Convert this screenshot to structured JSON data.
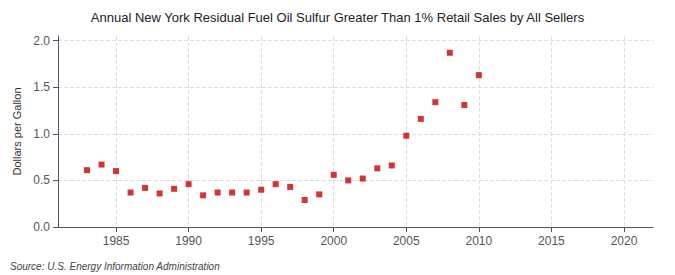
{
  "chart_data": {
    "type": "scatter",
    "title": "Annual New York Residual Fuel Oil Sulfur Greater Than 1% Retail Sales by All Sellers",
    "ylabel": "Dollars per Gallon",
    "annotations": [
      "Source: U.S. Energy Information Administration"
    ],
    "x": [
      1983,
      1984,
      1985,
      1986,
      1987,
      1988,
      1989,
      1990,
      1991,
      1992,
      1993,
      1994,
      1995,
      1996,
      1997,
      1998,
      1999,
      2000,
      2001,
      2002,
      2003,
      2004,
      2005,
      2006,
      2007,
      2008,
      2009,
      2010
    ],
    "values": [
      0.61,
      0.67,
      0.6,
      0.37,
      0.42,
      0.36,
      0.41,
      0.46,
      0.34,
      0.37,
      0.37,
      0.37,
      0.4,
      0.46,
      0.43,
      0.29,
      0.35,
      0.56,
      0.5,
      0.52,
      0.63,
      0.66,
      0.98,
      1.16,
      1.34,
      1.87,
      1.31,
      1.63
    ],
    "color": "#cc0000",
    "marker": "square",
    "xlim": [
      1981,
      2022
    ],
    "xticks": [
      1985,
      1990,
      1995,
      2000,
      2005,
      2010,
      2015,
      2020
    ],
    "ylim": [
      0.0,
      2.05
    ],
    "yticks": [
      {
        "value": 0,
        "label": "0.0"
      },
      0.5,
      {
        "value": 1,
        "label": "1.0"
      },
      1.5,
      {
        "value": 2,
        "label": "2.0"
      }
    ],
    "grid": true
  }
}
